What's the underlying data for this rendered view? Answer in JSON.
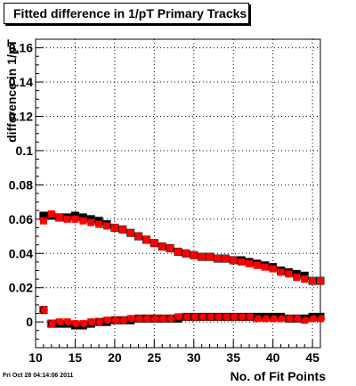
{
  "chart_data": {
    "type": "scatter",
    "title": "Fitted difference in 1/pT Primary Tracks",
    "xlabel": "No. of Fit Points",
    "ylabel": "difference in 1/pT",
    "xlim": [
      10,
      46
    ],
    "ylim": [
      -0.015,
      0.165
    ],
    "x_ticks": [
      10,
      15,
      20,
      25,
      30,
      35,
      40,
      45
    ],
    "y_ticks": [
      0,
      0.02,
      0.04,
      0.06,
      0.08,
      0.1,
      0.12,
      0.14,
      0.16
    ],
    "x_tick_labels": [
      "10",
      "15",
      "20",
      "25",
      "30",
      "35",
      "40",
      "45"
    ],
    "y_tick_labels": [
      "0",
      "0.02",
      "0.04",
      "0.06",
      "0.08",
      "0.1",
      "0.12",
      "0.14",
      "0.16"
    ],
    "grid": true,
    "colors": {
      "black_series": "#000000",
      "red_series": "#ff0000"
    },
    "series": [
      {
        "color": "#000000",
        "x": [
          11,
          12,
          13,
          14,
          15,
          16,
          17,
          18,
          19,
          20,
          21,
          22,
          23,
          24,
          25,
          26,
          27,
          28,
          29,
          30,
          31,
          32,
          33,
          34,
          35,
          36,
          37,
          38,
          39,
          40,
          41,
          42,
          43,
          44,
          45,
          46
        ],
        "values": [
          0.062,
          0.062,
          0.061,
          0.061,
          0.062,
          0.061,
          0.06,
          0.059,
          0.057,
          0.055,
          0.054,
          0.052,
          0.05,
          0.048,
          0.046,
          0.044,
          0.043,
          0.041,
          0.04,
          0.039,
          0.038,
          0.038,
          0.037,
          0.037,
          0.036,
          0.036,
          0.035,
          0.034,
          0.033,
          0.032,
          0.03,
          0.029,
          0.028,
          0.027,
          0.024,
          0.024
        ]
      },
      {
        "color": "#ff0000",
        "x": [
          11,
          12,
          13,
          14,
          15,
          16,
          17,
          18,
          19,
          20,
          21,
          22,
          23,
          24,
          25,
          26,
          27,
          28,
          29,
          30,
          31,
          32,
          33,
          34,
          35,
          36,
          37,
          38,
          39,
          40,
          41,
          42,
          43,
          44,
          45,
          46
        ],
        "values": [
          0.059,
          0.063,
          0.061,
          0.06,
          0.06,
          0.059,
          0.058,
          0.057,
          0.056,
          0.055,
          0.054,
          0.052,
          0.05,
          0.048,
          0.046,
          0.044,
          0.043,
          0.041,
          0.04,
          0.039,
          0.038,
          0.038,
          0.037,
          0.037,
          0.036,
          0.035,
          0.034,
          0.033,
          0.032,
          0.031,
          0.029,
          0.028,
          0.026,
          0.025,
          0.024,
          0.024
        ]
      },
      {
        "color": "#000000",
        "x": [
          11,
          12,
          13,
          14,
          15,
          16,
          17,
          18,
          19,
          20,
          21,
          22,
          23,
          24,
          25,
          26,
          27,
          28,
          29,
          30,
          31,
          32,
          33,
          34,
          35,
          36,
          37,
          38,
          39,
          40,
          41,
          42,
          43,
          44,
          45,
          46
        ],
        "values": [
          0.007,
          -0.001,
          -0.001,
          -0.001,
          -0.002,
          -0.002,
          -0.001,
          0,
          0,
          0.001,
          0.001,
          0.001,
          0.002,
          0.002,
          0.002,
          0.002,
          0.002,
          0.002,
          0.003,
          0.003,
          0.003,
          0.003,
          0.003,
          0.003,
          0.003,
          0.003,
          0.003,
          0.003,
          0.003,
          0.003,
          0.003,
          0.002,
          0.002,
          0.002,
          0.003,
          0.003
        ]
      },
      {
        "color": "#ff0000",
        "x": [
          11,
          12,
          13,
          14,
          15,
          16,
          17,
          18,
          19,
          20,
          21,
          22,
          23,
          24,
          25,
          26,
          27,
          28,
          29,
          30,
          31,
          32,
          33,
          34,
          35,
          36,
          37,
          38,
          39,
          40,
          41,
          42,
          43,
          44,
          45,
          46
        ],
        "values": [
          0.007,
          -0.001,
          0,
          0,
          -0.001,
          -0.001,
          0,
          0,
          0.001,
          0.001,
          0.001,
          0.002,
          0.002,
          0.002,
          0.002,
          0.002,
          0.002,
          0.003,
          0.003,
          0.003,
          0.003,
          0.003,
          0.003,
          0.003,
          0.003,
          0.003,
          0.003,
          0.002,
          0.002,
          0.002,
          0.002,
          0.002,
          0.002,
          0.001,
          0.002,
          0.002
        ]
      }
    ]
  },
  "footer": {
    "timestamp": "Fri Oct 28 04:14:06 2011"
  }
}
